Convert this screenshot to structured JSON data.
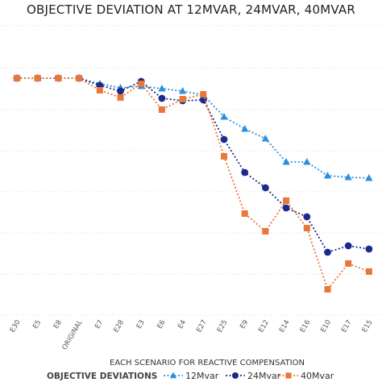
{
  "chart_data": {
    "type": "line",
    "title": "OBJECTIVE DEVIATION AT 12MVAR, 24MVAR, 40MVAR",
    "xlabel": "EACH SCENARIO FOR REACTIVE COMPENSATION",
    "ylabel": "",
    "grid": true,
    "legend_position": "bottom",
    "legend_title": "OBJECTIVE DEVIATIONS",
    "categories": [
      "E30",
      "E5",
      "E8",
      "ORIGINAL",
      "E7",
      "E28",
      "E3",
      "E6",
      "E4",
      "E27",
      "E25",
      "E9",
      "E12",
      "E14",
      "E16",
      "E10",
      "E17",
      "E15"
    ],
    "series": [
      {
        "name": "12Mvar",
        "color": "#2b8fe0",
        "marker": "triangle",
        "values": [
          97,
          97,
          97,
          97,
          104,
          109,
          107,
          110,
          113,
          118,
          145,
          160,
          172,
          201,
          201,
          218,
          220,
          221
        ]
      },
      {
        "name": "24Mvar",
        "color": "#1c2a8c",
        "marker": "circle",
        "values": [
          97,
          97,
          97,
          97,
          106,
          113,
          101,
          122,
          125,
          124,
          173,
          214,
          233,
          258,
          269,
          313,
          305,
          309
        ]
      },
      {
        "name": "40Mvar",
        "color": "#e8773a",
        "marker": "square",
        "values": [
          97,
          97,
          97,
          97,
          112,
          121,
          104,
          136,
          123,
          117,
          194,
          265,
          287,
          249,
          283,
          359,
          327,
          337
        ]
      }
    ]
  }
}
